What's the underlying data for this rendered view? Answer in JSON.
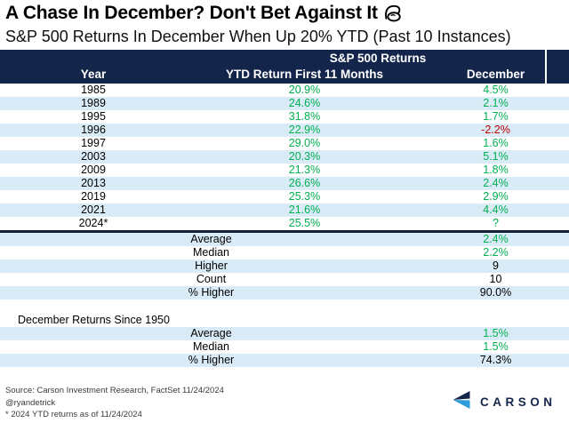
{
  "title": {
    "text": "A Chase In December? Don't Bet Against It",
    "icon": "flexed-biceps"
  },
  "subtitle": "S&P 500 Returns In December When Up 20% YTD (Past 10 Instances)",
  "chart_data": {
    "type": "table",
    "group_header": "S&P 500 Returns",
    "columns": [
      "Year",
      "YTD Return First 11 Months",
      "December"
    ],
    "rows": [
      {
        "year": "1985",
        "ytd": "20.9%",
        "december": "4.5%",
        "december_color": "green"
      },
      {
        "year": "1989",
        "ytd": "24.6%",
        "december": "2.1%",
        "december_color": "green"
      },
      {
        "year": "1995",
        "ytd": "31.8%",
        "december": "1.7%",
        "december_color": "green"
      },
      {
        "year": "1996",
        "ytd": "22.9%",
        "december": "-2.2%",
        "december_color": "red"
      },
      {
        "year": "1997",
        "ytd": "29.0%",
        "december": "1.6%",
        "december_color": "green"
      },
      {
        "year": "2003",
        "ytd": "20.3%",
        "december": "5.1%",
        "december_color": "green"
      },
      {
        "year": "2009",
        "ytd": "21.3%",
        "december": "1.8%",
        "december_color": "green"
      },
      {
        "year": "2013",
        "ytd": "26.6%",
        "december": "2.4%",
        "december_color": "green"
      },
      {
        "year": "2019",
        "ytd": "25.3%",
        "december": "2.9%",
        "december_color": "green"
      },
      {
        "year": "2021",
        "ytd": "21.6%",
        "december": "4.4%",
        "december_color": "green"
      },
      {
        "year": "2024*",
        "ytd": "25.5%",
        "december": "?",
        "december_color": "green"
      }
    ],
    "summary": [
      {
        "label": "Average",
        "value": "2.4%",
        "color": "green"
      },
      {
        "label": "Median",
        "value": "2.2%",
        "color": "green"
      },
      {
        "label": "Higher",
        "value": "9",
        "color": "black"
      },
      {
        "label": "Count",
        "value": "10",
        "color": "black"
      },
      {
        "label": "% Higher",
        "value": "90.0%",
        "color": "black"
      }
    ],
    "since_1950": {
      "label": "December Returns Since 1950",
      "rows": [
        {
          "label": "Average",
          "value": "1.5%",
          "color": "green"
        },
        {
          "label": "Median",
          "value": "1.5%",
          "color": "green"
        },
        {
          "label": "% Higher",
          "value": "74.3%",
          "color": "black"
        }
      ]
    }
  },
  "footer": {
    "source": "Source: Carson Investment Research, FactSet 11/24/2024",
    "handle": "@ryandetrick",
    "note": "* 2024 YTD returns as of 11/24/2024",
    "logo_text": "CARSON"
  },
  "colors": {
    "navy": "#13254B",
    "green": "#00B050",
    "red": "#C00000",
    "stripe": "#D9EBF7",
    "logo_blue": "#2D9CDB"
  }
}
